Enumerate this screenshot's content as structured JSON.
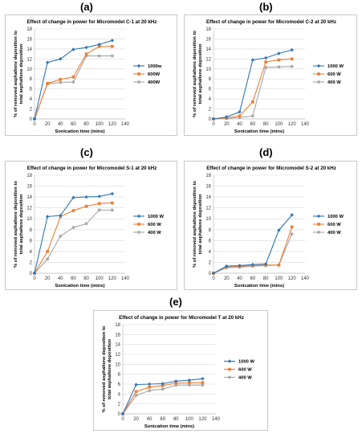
{
  "colors": {
    "s1": "#2e75b6",
    "s2": "#ed7d31",
    "s3": "#a5a5a5",
    "grid": "#d9d9d9"
  },
  "chart_data": [
    {
      "panel": "(a)",
      "type": "line",
      "title": "Effect of change in power for Micromodel C-1 at 20 kHz",
      "xlabel": "Sonication time (mins)",
      "ylabel": [
        "% of removed asphaltene deposition to",
        "total asphaltene deposition"
      ],
      "xlim": [
        0,
        140
      ],
      "ylim": [
        0,
        18
      ],
      "xticks": [
        0,
        20,
        40,
        60,
        80,
        100,
        120,
        140
      ],
      "yticks": [
        0,
        2,
        4,
        6,
        8,
        10,
        12,
        14,
        16,
        18
      ],
      "x": [
        0,
        20,
        40,
        60,
        80,
        100,
        120
      ],
      "legend_position": "right",
      "series": [
        {
          "name": "1000w",
          "values": [
            0,
            11.3,
            12.0,
            13.9,
            14.3,
            14.9,
            15.7
          ]
        },
        {
          "name": "600W",
          "values": [
            0,
            7.1,
            7.9,
            8.4,
            13.0,
            14.5,
            14.5
          ]
        },
        {
          "name": "400W",
          "values": [
            0,
            7.0,
            7.3,
            7.4,
            12.6,
            12.6,
            12.6
          ]
        }
      ]
    },
    {
      "panel": "(b)",
      "type": "line",
      "title": "Effect of change in power for Micromodel C-2 at 20 kHz",
      "xlabel": "Sonication time (mins)",
      "ylabel": [
        "% of removed asphaltene deposition to",
        "total asphaltene deposition"
      ],
      "xlim": [
        0,
        140
      ],
      "ylim": [
        0,
        18
      ],
      "xticks": [
        0,
        20,
        40,
        60,
        80,
        100,
        120,
        140
      ],
      "yticks": [
        0,
        2,
        4,
        6,
        8,
        10,
        12,
        14,
        16,
        18
      ],
      "x": [
        0,
        20,
        40,
        60,
        80,
        100,
        120
      ],
      "legend_position": "right",
      "series": [
        {
          "name": "1000 W",
          "values": [
            0,
            0.4,
            1.4,
            11.8,
            12.2,
            13.1,
            13.8
          ]
        },
        {
          "name": "600 W",
          "values": [
            0,
            0.2,
            0.6,
            3.4,
            11.4,
            11.8,
            12.0
          ]
        },
        {
          "name": "400 W",
          "values": [
            0,
            0.1,
            0.3,
            0.6,
            10.3,
            10.4,
            10.5
          ]
        }
      ]
    },
    {
      "panel": "(c)",
      "type": "line",
      "title": "Effect of change in power for Micromodel S-1 at 20 kHz",
      "xlabel": "Sonication time (mins)",
      "ylabel": [
        "% of removed asphaltene deposition to",
        "total asphaltene deposition"
      ],
      "xlim": [
        0,
        140
      ],
      "ylim": [
        0,
        18
      ],
      "xticks": [
        0,
        20,
        40,
        60,
        80,
        100,
        120,
        140
      ],
      "yticks": [
        0,
        2,
        4,
        6,
        8,
        10,
        12,
        14,
        16,
        18
      ],
      "x": [
        0,
        20,
        40,
        60,
        80,
        100,
        120
      ],
      "legend_position": "right",
      "series": [
        {
          "name": "1000 W",
          "values": [
            0,
            10.4,
            10.6,
            13.9,
            14.0,
            14.1,
            14.6
          ]
        },
        {
          "name": "600 W",
          "values": [
            0,
            4.0,
            10.4,
            11.5,
            12.3,
            12.8,
            12.9
          ]
        },
        {
          "name": "400 W",
          "values": [
            0,
            2.6,
            6.8,
            8.4,
            9.1,
            11.6,
            11.6
          ]
        }
      ]
    },
    {
      "panel": "(d)",
      "type": "line",
      "title": "Effect of change in power for Micromodel S-2 at 20 kHz",
      "xlabel": "Sonication time (mins)",
      "ylabel": [
        "% of removed asphaltene deposition to",
        "total asphaltene deposition"
      ],
      "xlim": [
        0,
        140
      ],
      "ylim": [
        0,
        18
      ],
      "xticks": [
        0,
        20,
        40,
        60,
        80,
        100,
        120,
        140
      ],
      "yticks": [
        0,
        2,
        4,
        6,
        8,
        10,
        12,
        14,
        16,
        18
      ],
      "x": [
        0,
        20,
        40,
        60,
        80,
        100,
        120
      ],
      "legend_position": "right",
      "series": [
        {
          "name": "1000 W",
          "values": [
            0,
            1.3,
            1.4,
            1.6,
            1.7,
            7.9,
            10.7
          ]
        },
        {
          "name": "600 W",
          "values": [
            0,
            1.2,
            1.3,
            1.4,
            1.5,
            1.5,
            8.5
          ]
        },
        {
          "name": "400 W",
          "values": [
            0,
            1.0,
            1.1,
            1.3,
            1.4,
            1.5,
            7.2
          ]
        }
      ]
    },
    {
      "panel": "(e)",
      "type": "line",
      "title": "Effect of change in power for Micromodel T at 20 kHz",
      "xlabel": "Sonication time (mins)",
      "ylabel": [
        "% of removed asphaltene deposition to",
        "total asphaltene deposition"
      ],
      "xlim": [
        0,
        140
      ],
      "ylim": [
        0,
        18
      ],
      "xticks": [
        0,
        20,
        40,
        60,
        80,
        100,
        120,
        140
      ],
      "yticks": [
        0,
        2,
        4,
        6,
        8,
        10,
        12,
        14,
        16,
        18
      ],
      "x": [
        0,
        20,
        40,
        60,
        80,
        100,
        120
      ],
      "legend_position": "right",
      "series": [
        {
          "name": "1000 W",
          "values": [
            0,
            5.9,
            6.0,
            6.1,
            6.6,
            6.8,
            7.1
          ]
        },
        {
          "name": "600 W",
          "values": [
            0,
            4.5,
            5.4,
            5.7,
            6.2,
            6.3,
            6.3
          ]
        },
        {
          "name": "400 W",
          "values": [
            0,
            3.7,
            4.7,
            5.0,
            5.8,
            5.8,
            5.8
          ]
        }
      ]
    }
  ]
}
